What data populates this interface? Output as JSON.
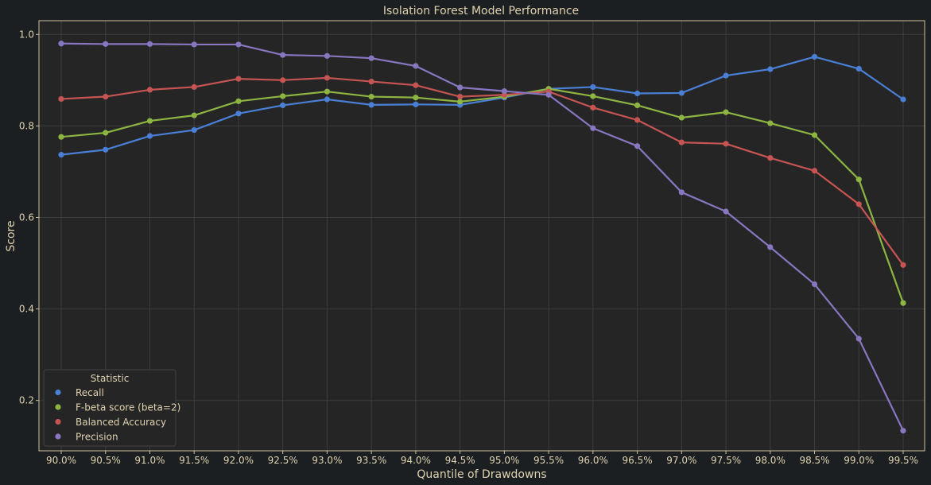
{
  "chart_data": {
    "type": "line",
    "title": "Isolation Forest Model Performance",
    "xlabel": "Quantile of Drawdowns",
    "ylabel": "Score",
    "categories": [
      "90.0%",
      "90.5%",
      "91.0%",
      "91.5%",
      "92.0%",
      "92.5%",
      "93.0%",
      "93.5%",
      "94.0%",
      "94.5%",
      "95.0%",
      "95.5%",
      "96.0%",
      "96.5%",
      "97.0%",
      "97.5%",
      "98.0%",
      "98.5%",
      "99.0%",
      "99.5%"
    ],
    "ylim": [
      0.09,
      1.03
    ],
    "yticks": [
      0.2,
      0.4,
      0.6,
      0.8,
      1.0
    ],
    "ytick_labels": [
      "0.2",
      "0.4",
      "0.6",
      "0.8",
      "1.0"
    ],
    "grid": true,
    "legend": {
      "title": "Statistic",
      "placement": "lower-left"
    },
    "series": [
      {
        "name": "Recall",
        "color": "#4a7fd6",
        "values": [
          0.737,
          0.748,
          0.778,
          0.791,
          0.827,
          0.845,
          0.858,
          0.846,
          0.847,
          0.846,
          0.862,
          0.881,
          0.885,
          0.871,
          0.872,
          0.91,
          0.924,
          0.951,
          0.925,
          0.858
        ]
      },
      {
        "name": "F-beta score (beta=2)",
        "color": "#8db542",
        "values": [
          0.776,
          0.785,
          0.811,
          0.823,
          0.854,
          0.865,
          0.875,
          0.864,
          0.862,
          0.853,
          0.864,
          0.881,
          0.865,
          0.845,
          0.818,
          0.83,
          0.806,
          0.78,
          0.683,
          0.413
        ]
      },
      {
        "name": "Balanced Accuracy",
        "color": "#c65453",
        "values": [
          0.859,
          0.864,
          0.879,
          0.885,
          0.903,
          0.9,
          0.905,
          0.897,
          0.889,
          0.864,
          0.868,
          0.875,
          0.84,
          0.813,
          0.764,
          0.761,
          0.73,
          0.702,
          0.629,
          0.496
        ]
      },
      {
        "name": "Precision",
        "color": "#8876c0",
        "values": [
          0.98,
          0.979,
          0.979,
          0.978,
          0.978,
          0.955,
          0.953,
          0.948,
          0.931,
          0.884,
          0.876,
          0.868,
          0.795,
          0.756,
          0.655,
          0.613,
          0.535,
          0.454,
          0.335,
          0.134
        ]
      }
    ]
  },
  "style": {
    "background": "#1b1f21",
    "plot_background": "#252525",
    "frame_color": "#cfc19e",
    "grid_color": "#3d3d3d",
    "text_color": "#e0d2b0"
  }
}
